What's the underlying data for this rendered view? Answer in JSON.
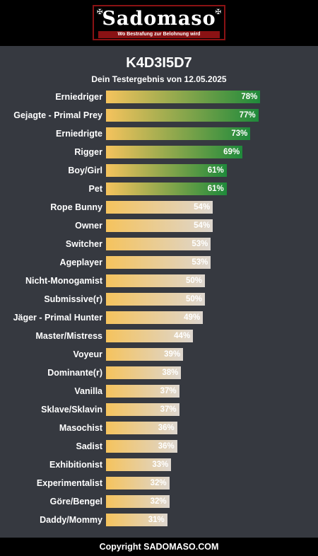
{
  "logo": {
    "text": "Sadomaso",
    "tagline": "Wo Bestrafung zur Belohnung wird",
    "cross_glyph": "✠"
  },
  "header": {
    "title": "K4D3I5D7",
    "subtitle": "Dein Testergebnis von 12.05.2025"
  },
  "footer": {
    "text": "Copyright SADOMASO.COM"
  },
  "colors": {
    "bar_start": "#f5c35d",
    "high_end": "#1f8a3b",
    "low_end": "#ddd6cf",
    "background": "#363940"
  },
  "chart_data": {
    "type": "bar",
    "orientation": "horizontal",
    "xlim": [
      0,
      100
    ],
    "highlight_threshold": 60,
    "categories": [
      "Erniedriger",
      "Gejagte - Primal Prey",
      "Erniedrigte",
      "Rigger",
      "Boy/Girl",
      "Pet",
      "Rope Bunny",
      "Owner",
      "Switcher",
      "Ageplayer",
      "Nicht-Monogamist",
      "Submissive(r)",
      "Jäger - Primal Hunter",
      "Master/Mistress",
      "Voyeur",
      "Dominante(r)",
      "Vanilla",
      "Sklave/Sklavin",
      "Masochist",
      "Sadist",
      "Exhibitionist",
      "Experimentalist",
      "Göre/Bengel",
      "Daddy/Mommy"
    ],
    "values": [
      78,
      77,
      73,
      69,
      61,
      61,
      54,
      54,
      53,
      53,
      50,
      50,
      49,
      44,
      39,
      38,
      37,
      37,
      36,
      36,
      33,
      32,
      32,
      31
    ],
    "value_labels": [
      "78%",
      "77%",
      "73%",
      "69%",
      "61%",
      "61%",
      "54%",
      "54%",
      "53%",
      "53%",
      "50%",
      "50%",
      "49%",
      "44%",
      "39%",
      "38%",
      "37%",
      "37%",
      "36%",
      "36%",
      "33%",
      "32%",
      "32%",
      "31%"
    ]
  }
}
